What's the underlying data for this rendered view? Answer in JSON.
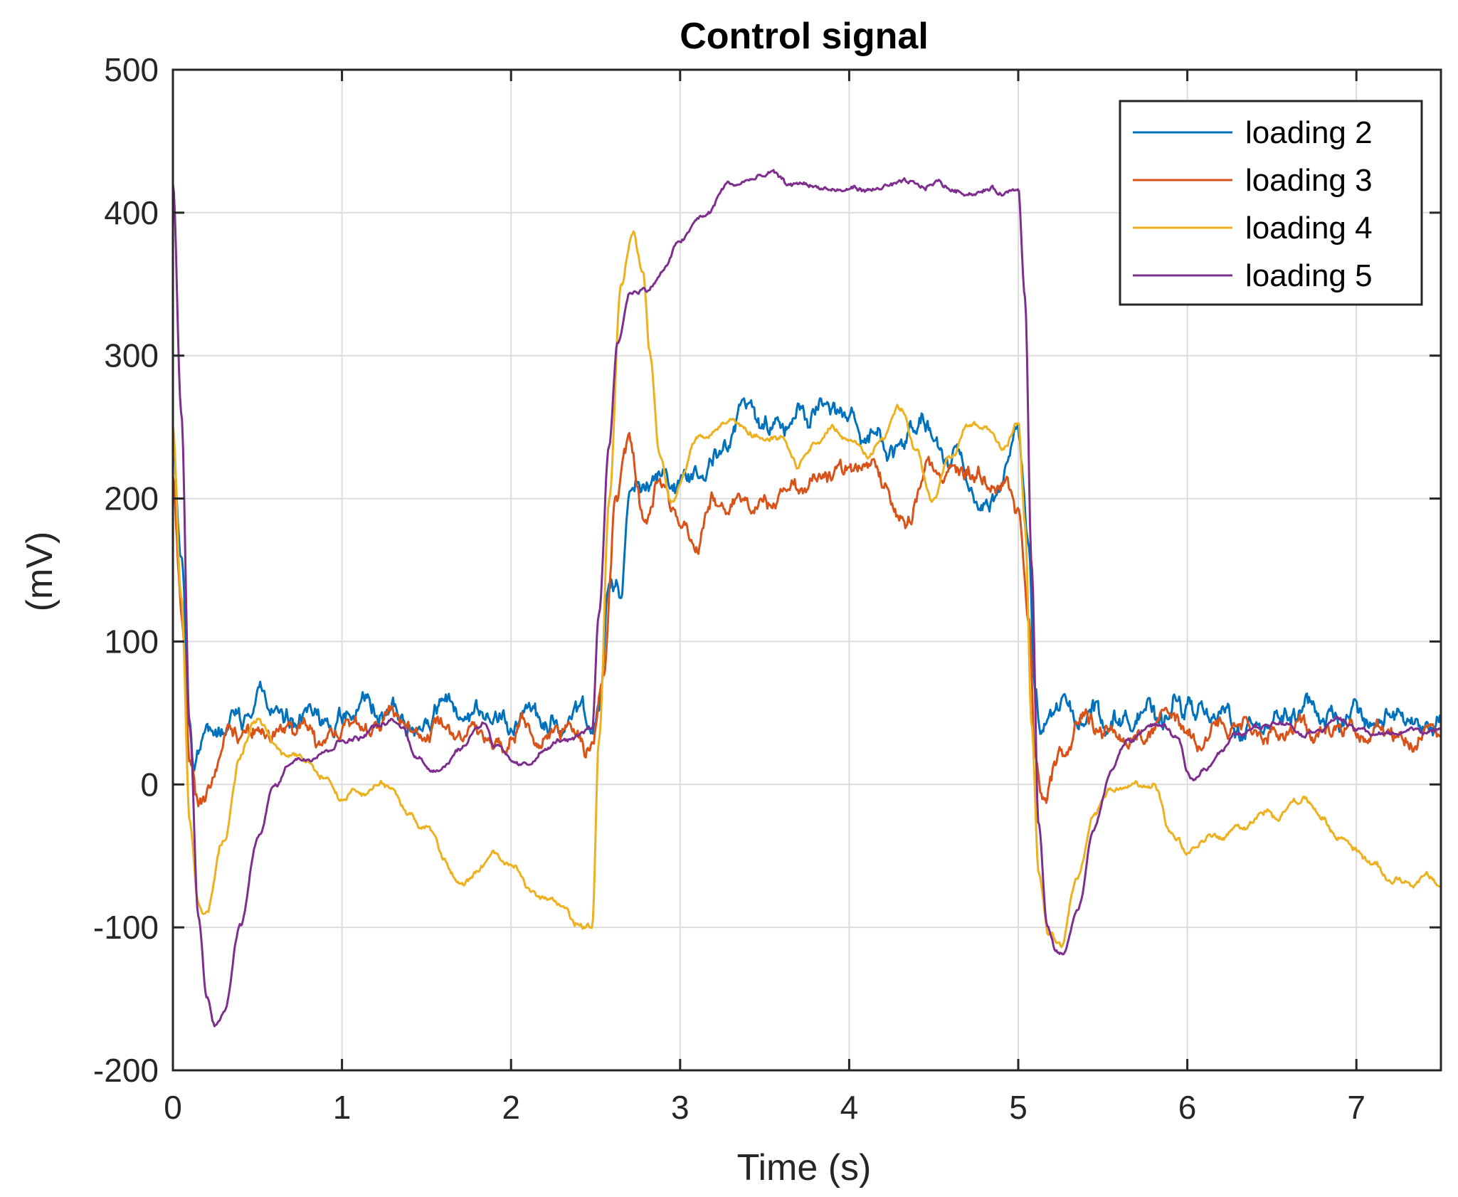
{
  "chart_data": {
    "type": "line",
    "title": "Control signal",
    "xlabel": "Time (s)",
    "ylabel": "(mV)",
    "xlim": [
      0,
      7.5
    ],
    "ylim": [
      -200,
      500
    ],
    "xticks": [
      0,
      1,
      2,
      3,
      4,
      5,
      6,
      7
    ],
    "yticks": [
      -200,
      -100,
      0,
      100,
      200,
      300,
      400,
      500
    ],
    "xtick_labels": [
      "0",
      "1",
      "2",
      "3",
      "4",
      "5",
      "6",
      "7"
    ],
    "ytick_labels": [
      "-200",
      "-100",
      "0",
      "100",
      "200",
      "300",
      "400",
      "500"
    ],
    "grid": true,
    "legend_position": "top-right",
    "series": [
      {
        "name": "loading 2",
        "color": "#0072BD",
        "noise": 12,
        "points": [
          [
            0,
            230
          ],
          [
            0.05,
            150
          ],
          [
            0.1,
            40
          ],
          [
            0.12,
            15
          ],
          [
            0.2,
            45
          ],
          [
            0.3,
            40
          ],
          [
            0.4,
            55
          ],
          [
            0.5,
            60
          ],
          [
            0.6,
            45
          ],
          [
            0.8,
            50
          ],
          [
            1.0,
            45
          ],
          [
            1.2,
            55
          ],
          [
            1.4,
            40
          ],
          [
            1.6,
            55
          ],
          [
            1.8,
            45
          ],
          [
            2.0,
            45
          ],
          [
            2.2,
            50
          ],
          [
            2.4,
            40
          ],
          [
            2.48,
            45
          ],
          [
            2.52,
            60
          ],
          [
            2.58,
            130
          ],
          [
            2.65,
            130
          ],
          [
            2.7,
            210
          ],
          [
            2.8,
            215
          ],
          [
            2.9,
            210
          ],
          [
            3.0,
            215
          ],
          [
            3.2,
            230
          ],
          [
            3.4,
            260
          ],
          [
            3.6,
            255
          ],
          [
            3.8,
            265
          ],
          [
            4.0,
            250
          ],
          [
            4.2,
            240
          ],
          [
            4.4,
            250
          ],
          [
            4.6,
            230
          ],
          [
            4.8,
            200
          ],
          [
            4.9,
            210
          ],
          [
            5.0,
            250
          ],
          [
            5.06,
            180
          ],
          [
            5.1,
            60
          ],
          [
            5.13,
            25
          ],
          [
            5.2,
            50
          ],
          [
            5.3,
            55
          ],
          [
            5.5,
            50
          ],
          [
            5.7,
            45
          ],
          [
            5.9,
            50
          ],
          [
            6.0,
            55
          ],
          [
            6.2,
            45
          ],
          [
            6.4,
            40
          ],
          [
            6.6,
            50
          ],
          [
            6.8,
            45
          ],
          [
            7.0,
            50
          ],
          [
            7.2,
            45
          ],
          [
            7.4,
            40
          ],
          [
            7.5,
            35
          ]
        ]
      },
      {
        "name": "loading 3",
        "color": "#D95319",
        "noise": 10,
        "points": [
          [
            0,
            210
          ],
          [
            0.05,
            120
          ],
          [
            0.1,
            20
          ],
          [
            0.15,
            -15
          ],
          [
            0.25,
            10
          ],
          [
            0.35,
            40
          ],
          [
            0.5,
            35
          ],
          [
            0.7,
            40
          ],
          [
            0.9,
            35
          ],
          [
            1.1,
            40
          ],
          [
            1.3,
            45
          ],
          [
            1.5,
            35
          ],
          [
            1.7,
            40
          ],
          [
            1.9,
            30
          ],
          [
            2.1,
            35
          ],
          [
            2.3,
            40
          ],
          [
            2.48,
            35
          ],
          [
            2.55,
            80
          ],
          [
            2.62,
            200
          ],
          [
            2.7,
            235
          ],
          [
            2.8,
            180
          ],
          [
            2.9,
            215
          ],
          [
            3.0,
            185
          ],
          [
            3.1,
            170
          ],
          [
            3.2,
            205
          ],
          [
            3.4,
            195
          ],
          [
            3.6,
            200
          ],
          [
            3.8,
            210
          ],
          [
            4.0,
            225
          ],
          [
            4.2,
            215
          ],
          [
            4.3,
            180
          ],
          [
            4.5,
            225
          ],
          [
            4.7,
            220
          ],
          [
            4.9,
            210
          ],
          [
            5.0,
            200
          ],
          [
            5.06,
            120
          ],
          [
            5.1,
            20
          ],
          [
            5.15,
            -15
          ],
          [
            5.25,
            20
          ],
          [
            5.35,
            45
          ],
          [
            5.5,
            40
          ],
          [
            5.7,
            35
          ],
          [
            5.9,
            40
          ],
          [
            6.1,
            35
          ],
          [
            6.3,
            40
          ],
          [
            6.5,
            35
          ],
          [
            6.7,
            30
          ],
          [
            6.9,
            40
          ],
          [
            7.1,
            35
          ],
          [
            7.3,
            25
          ],
          [
            7.4,
            40
          ],
          [
            7.5,
            20
          ]
        ]
      },
      {
        "name": "loading 4",
        "color": "#EDB120",
        "noise": 4,
        "points": [
          [
            0,
            250
          ],
          [
            0.05,
            130
          ],
          [
            0.1,
            -30
          ],
          [
            0.15,
            -85
          ],
          [
            0.2,
            -90
          ],
          [
            0.3,
            -40
          ],
          [
            0.4,
            20
          ],
          [
            0.5,
            45
          ],
          [
            0.6,
            25
          ],
          [
            0.8,
            15
          ],
          [
            0.9,
            5
          ],
          [
            1.0,
            -10
          ],
          [
            1.1,
            -5
          ],
          [
            1.2,
            0
          ],
          [
            1.3,
            -5
          ],
          [
            1.4,
            -20
          ],
          [
            1.5,
            -30
          ],
          [
            1.6,
            -50
          ],
          [
            1.7,
            -70
          ],
          [
            1.8,
            -60
          ],
          [
            1.9,
            -45
          ],
          [
            2.0,
            -60
          ],
          [
            2.2,
            -80
          ],
          [
            2.4,
            -95
          ],
          [
            2.48,
            -100
          ],
          [
            2.52,
            30
          ],
          [
            2.58,
            200
          ],
          [
            2.65,
            350
          ],
          [
            2.72,
            390
          ],
          [
            2.78,
            360
          ],
          [
            2.82,
            300
          ],
          [
            2.88,
            230
          ],
          [
            2.95,
            200
          ],
          [
            3.1,
            240
          ],
          [
            3.3,
            255
          ],
          [
            3.5,
            245
          ],
          [
            3.6,
            240
          ],
          [
            3.7,
            225
          ],
          [
            3.8,
            235
          ],
          [
            3.9,
            250
          ],
          [
            4.0,
            240
          ],
          [
            4.1,
            230
          ],
          [
            4.2,
            245
          ],
          [
            4.3,
            265
          ],
          [
            4.4,
            230
          ],
          [
            4.5,
            200
          ],
          [
            4.6,
            230
          ],
          [
            4.7,
            250
          ],
          [
            4.8,
            250
          ],
          [
            4.9,
            235
          ],
          [
            5.0,
            255
          ],
          [
            5.04,
            180
          ],
          [
            5.08,
            40
          ],
          [
            5.12,
            -60
          ],
          [
            5.18,
            -105
          ],
          [
            5.25,
            -110
          ],
          [
            5.35,
            -70
          ],
          [
            5.45,
            -20
          ],
          [
            5.55,
            -5
          ],
          [
            5.7,
            0
          ],
          [
            5.8,
            0
          ],
          [
            5.9,
            -30
          ],
          [
            6.0,
            -45
          ],
          [
            6.1,
            -40
          ],
          [
            6.3,
            -30
          ],
          [
            6.5,
            -20
          ],
          [
            6.6,
            -15
          ],
          [
            6.7,
            -10
          ],
          [
            6.8,
            -25
          ],
          [
            6.9,
            -40
          ],
          [
            7.0,
            -45
          ],
          [
            7.1,
            -55
          ],
          [
            7.2,
            -65
          ],
          [
            7.3,
            -65
          ],
          [
            7.4,
            -65
          ],
          [
            7.5,
            -70
          ]
        ]
      },
      {
        "name": "loading 5",
        "color": "#7E2F8E",
        "noise": 3,
        "points": [
          [
            0,
            420
          ],
          [
            0.05,
            260
          ],
          [
            0.1,
            40
          ],
          [
            0.15,
            -90
          ],
          [
            0.2,
            -150
          ],
          [
            0.25,
            -170
          ],
          [
            0.3,
            -160
          ],
          [
            0.4,
            -100
          ],
          [
            0.5,
            -40
          ],
          [
            0.6,
            0
          ],
          [
            0.7,
            15
          ],
          [
            0.8,
            20
          ],
          [
            0.9,
            25
          ],
          [
            1.0,
            30
          ],
          [
            1.1,
            35
          ],
          [
            1.2,
            40
          ],
          [
            1.3,
            45
          ],
          [
            1.35,
            40
          ],
          [
            1.45,
            20
          ],
          [
            1.5,
            10
          ],
          [
            1.6,
            15
          ],
          [
            1.7,
            25
          ],
          [
            1.8,
            40
          ],
          [
            1.85,
            45
          ],
          [
            1.9,
            30
          ],
          [
            2.0,
            15
          ],
          [
            2.1,
            15
          ],
          [
            2.2,
            25
          ],
          [
            2.3,
            30
          ],
          [
            2.4,
            35
          ],
          [
            2.48,
            40
          ],
          [
            2.52,
            120
          ],
          [
            2.58,
            240
          ],
          [
            2.63,
            310
          ],
          [
            2.7,
            345
          ],
          [
            2.8,
            345
          ],
          [
            2.9,
            360
          ],
          [
            3.0,
            380
          ],
          [
            3.15,
            400
          ],
          [
            3.3,
            420
          ],
          [
            3.5,
            425
          ],
          [
            3.7,
            420
          ],
          [
            3.9,
            415
          ],
          [
            4.1,
            415
          ],
          [
            4.3,
            420
          ],
          [
            4.5,
            420
          ],
          [
            4.7,
            415
          ],
          [
            4.9,
            415
          ],
          [
            5.0,
            415
          ],
          [
            5.04,
            340
          ],
          [
            5.08,
            150
          ],
          [
            5.12,
            -30
          ],
          [
            5.17,
            -100
          ],
          [
            5.22,
            -115
          ],
          [
            5.27,
            -120
          ],
          [
            5.35,
            -90
          ],
          [
            5.45,
            -30
          ],
          [
            5.55,
            10
          ],
          [
            5.65,
            30
          ],
          [
            5.75,
            40
          ],
          [
            5.85,
            40
          ],
          [
            5.95,
            30
          ],
          [
            6.0,
            10
          ],
          [
            6.05,
            5
          ],
          [
            6.1,
            10
          ],
          [
            6.2,
            25
          ],
          [
            6.3,
            35
          ],
          [
            6.4,
            40
          ],
          [
            6.5,
            45
          ],
          [
            6.6,
            40
          ],
          [
            6.7,
            35
          ],
          [
            6.8,
            40
          ],
          [
            6.9,
            45
          ],
          [
            7.0,
            40
          ],
          [
            7.1,
            35
          ],
          [
            7.2,
            35
          ],
          [
            7.3,
            40
          ],
          [
            7.4,
            35
          ],
          [
            7.5,
            40
          ]
        ]
      }
    ]
  }
}
